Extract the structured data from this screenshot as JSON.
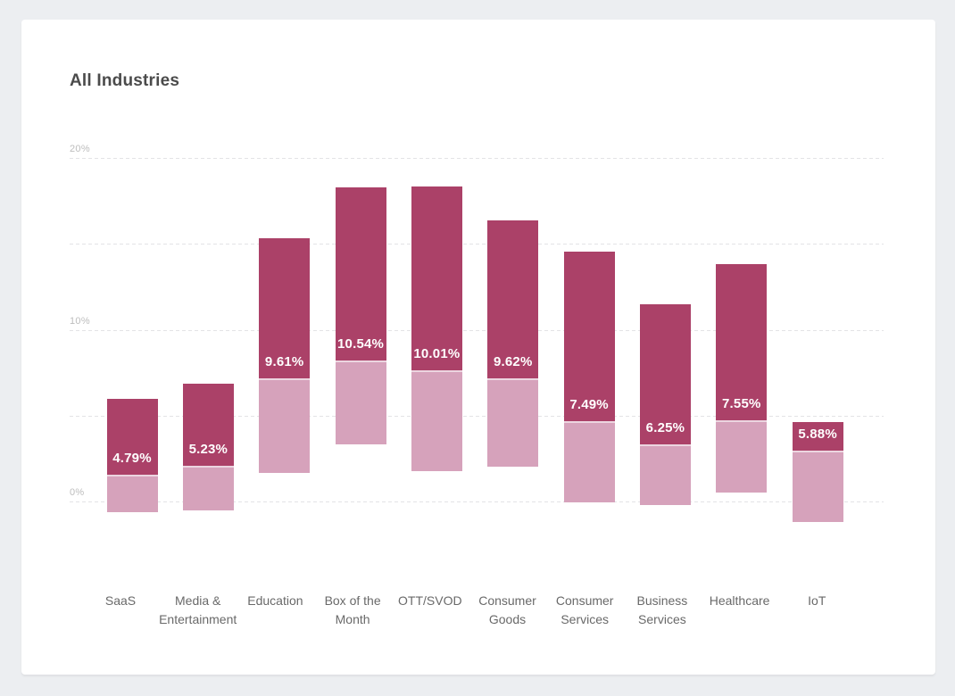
{
  "card": {
    "title": "All Industries"
  },
  "chart_data": {
    "type": "floating-bar",
    "title": "All Industries",
    "legend": "none",
    "grid": "horizontal dashed",
    "y_axis": {
      "unit": "%",
      "tick_labels": [
        "20%",
        "10%",
        "0%"
      ],
      "tick_values": [
        20,
        10,
        0
      ],
      "gridline_values": [
        20,
        15,
        10,
        5,
        0
      ],
      "ylim": [
        -2.5,
        21
      ]
    },
    "colors": {
      "upper_segment": "#ab4168",
      "lower_segment": "#d6a2bb",
      "value_label_text": "#ffffff"
    },
    "bars": [
      {
        "category": "SaaS",
        "value_label": "4.79%",
        "avg": 4.79,
        "range_top": 6.0,
        "split": 1.55,
        "range_bottom": -0.6
      },
      {
        "category": "Media & Entertainment",
        "value_label": "5.23%",
        "avg": 5.23,
        "range_top": 6.85,
        "split": 2.1,
        "range_bottom": -0.5
      },
      {
        "category": "Education",
        "value_label": "9.61%",
        "avg": 9.61,
        "range_top": 15.3,
        "split": 7.15,
        "range_bottom": 1.65
      },
      {
        "category": "Box of the Month",
        "value_label": "10.54%",
        "avg": 10.54,
        "range_top": 18.3,
        "split": 8.2,
        "range_bottom": 3.3
      },
      {
        "category": "OTT/SVOD",
        "value_label": "10.01%",
        "avg": 10.01,
        "range_top": 18.35,
        "split": 7.65,
        "range_bottom": 1.75
      },
      {
        "category": "Consumer Goods",
        "value_label": "9.62%",
        "avg": 9.62,
        "range_top": 16.35,
        "split": 7.15,
        "range_bottom": 2.05
      },
      {
        "category": "Consumer Services",
        "value_label": "7.49%",
        "avg": 7.49,
        "range_top": 14.55,
        "split": 4.65,
        "range_bottom": -0.05
      },
      {
        "category": "Business Services",
        "value_label": "6.25%",
        "avg": 6.25,
        "range_top": 11.5,
        "split": 3.3,
        "range_bottom": -0.2
      },
      {
        "category": "Healthcare",
        "value_label": "7.55%",
        "avg": 7.55,
        "range_top": 13.8,
        "split": 4.75,
        "range_bottom": 0.5
      },
      {
        "category": "IoT",
        "value_label": "5.88%",
        "avg": 5.88,
        "range_top": 4.6,
        "split": 2.95,
        "range_bottom": -1.2
      }
    ]
  }
}
